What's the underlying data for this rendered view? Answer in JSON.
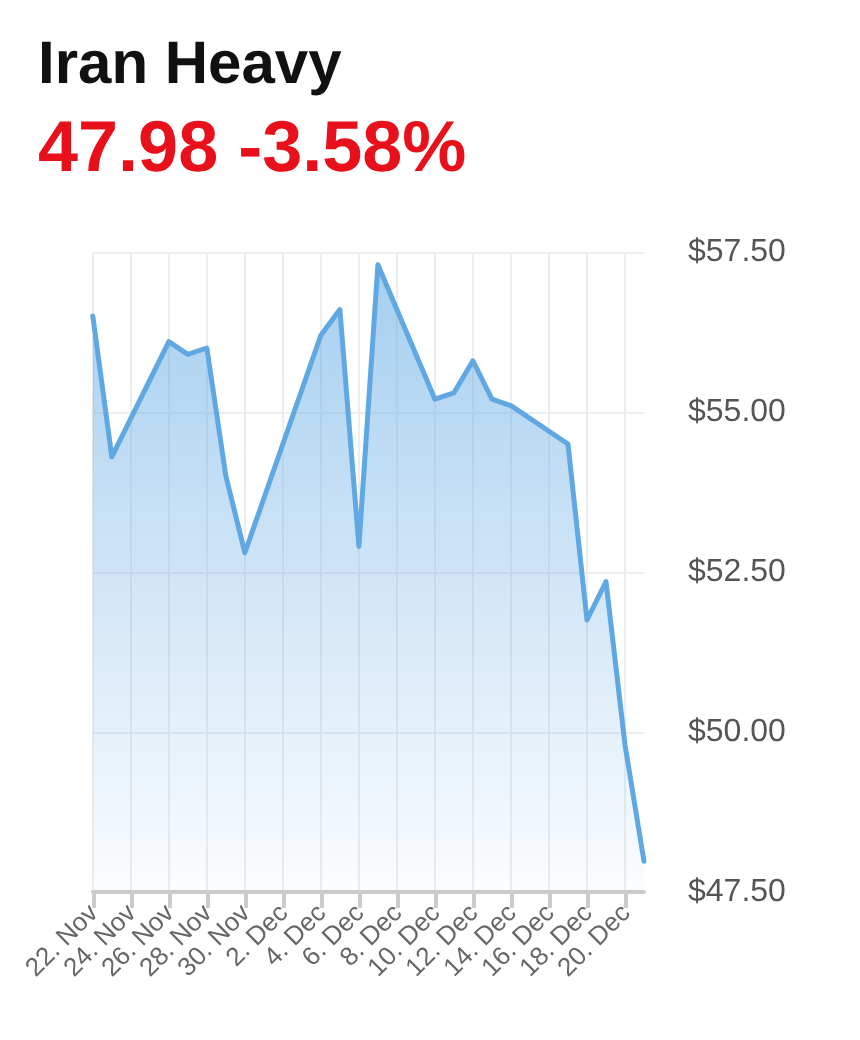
{
  "chart_data": {
    "type": "area",
    "title": "Iran Heavy",
    "subtitle": "47.98 -3.58%",
    "x": [
      "--11-22",
      "--11-23",
      "--11-26",
      "--11-27",
      "--11-28",
      "--11-29",
      "--11-30",
      "--12-04",
      "--12-05",
      "--12-06",
      "--12-07",
      "--12-10",
      "--12-11",
      "--12-12",
      "--12-13",
      "--12-14",
      "--12-17",
      "--12-18",
      "--12-19",
      "--12-20",
      "--12-21"
    ],
    "series": [
      {
        "color": "#5fa8e3",
        "values": [
          56.5,
          54.3,
          56.1,
          55.9,
          56.0,
          54.0,
          52.8,
          56.2,
          56.6,
          52.9,
          57.3,
          55.2,
          55.3,
          55.8,
          55.2,
          55.1,
          54.5,
          51.75,
          52.35,
          49.8,
          47.98
        ]
      }
    ],
    "xlim": [
      "--11-22",
      "--12-21"
    ],
    "xticks": [
      {
        "value": "--11-22",
        "label": "22. Nov"
      },
      {
        "value": "--11-24",
        "label": "24. Nov"
      },
      {
        "value": "--11-26",
        "label": "26. Nov"
      },
      {
        "value": "--11-28",
        "label": "28. Nov"
      },
      {
        "value": "--11-30",
        "label": "30. Nov"
      },
      {
        "value": "--12-02",
        "label": "2. Dec"
      },
      {
        "value": "--12-04",
        "label": "4. Dec"
      },
      {
        "value": "--12-06",
        "label": "6. Dec"
      },
      {
        "value": "--12-08",
        "label": "8. Dec"
      },
      {
        "value": "--12-10",
        "label": "10. Dec"
      },
      {
        "value": "--12-12",
        "label": "12. Dec"
      },
      {
        "value": "--12-14",
        "label": "14. Dec"
      },
      {
        "value": "--12-16",
        "label": "16. Dec"
      },
      {
        "value": "--12-18",
        "label": "18. Dec"
      },
      {
        "value": "--12-20",
        "label": "20. Dec"
      }
    ],
    "ylim": [
      47.5,
      57.5
    ],
    "yticks": [
      {
        "value": 47.5,
        "label": "$47.50"
      },
      {
        "value": 50,
        "label": "$50.00"
      },
      {
        "value": 52.5,
        "label": "$52.50"
      },
      {
        "value": 55,
        "label": "$55.00"
      },
      {
        "value": 57.5,
        "label": "$57.50"
      }
    ],
    "grid": true,
    "marker": "none",
    "line_style": "solid"
  }
}
